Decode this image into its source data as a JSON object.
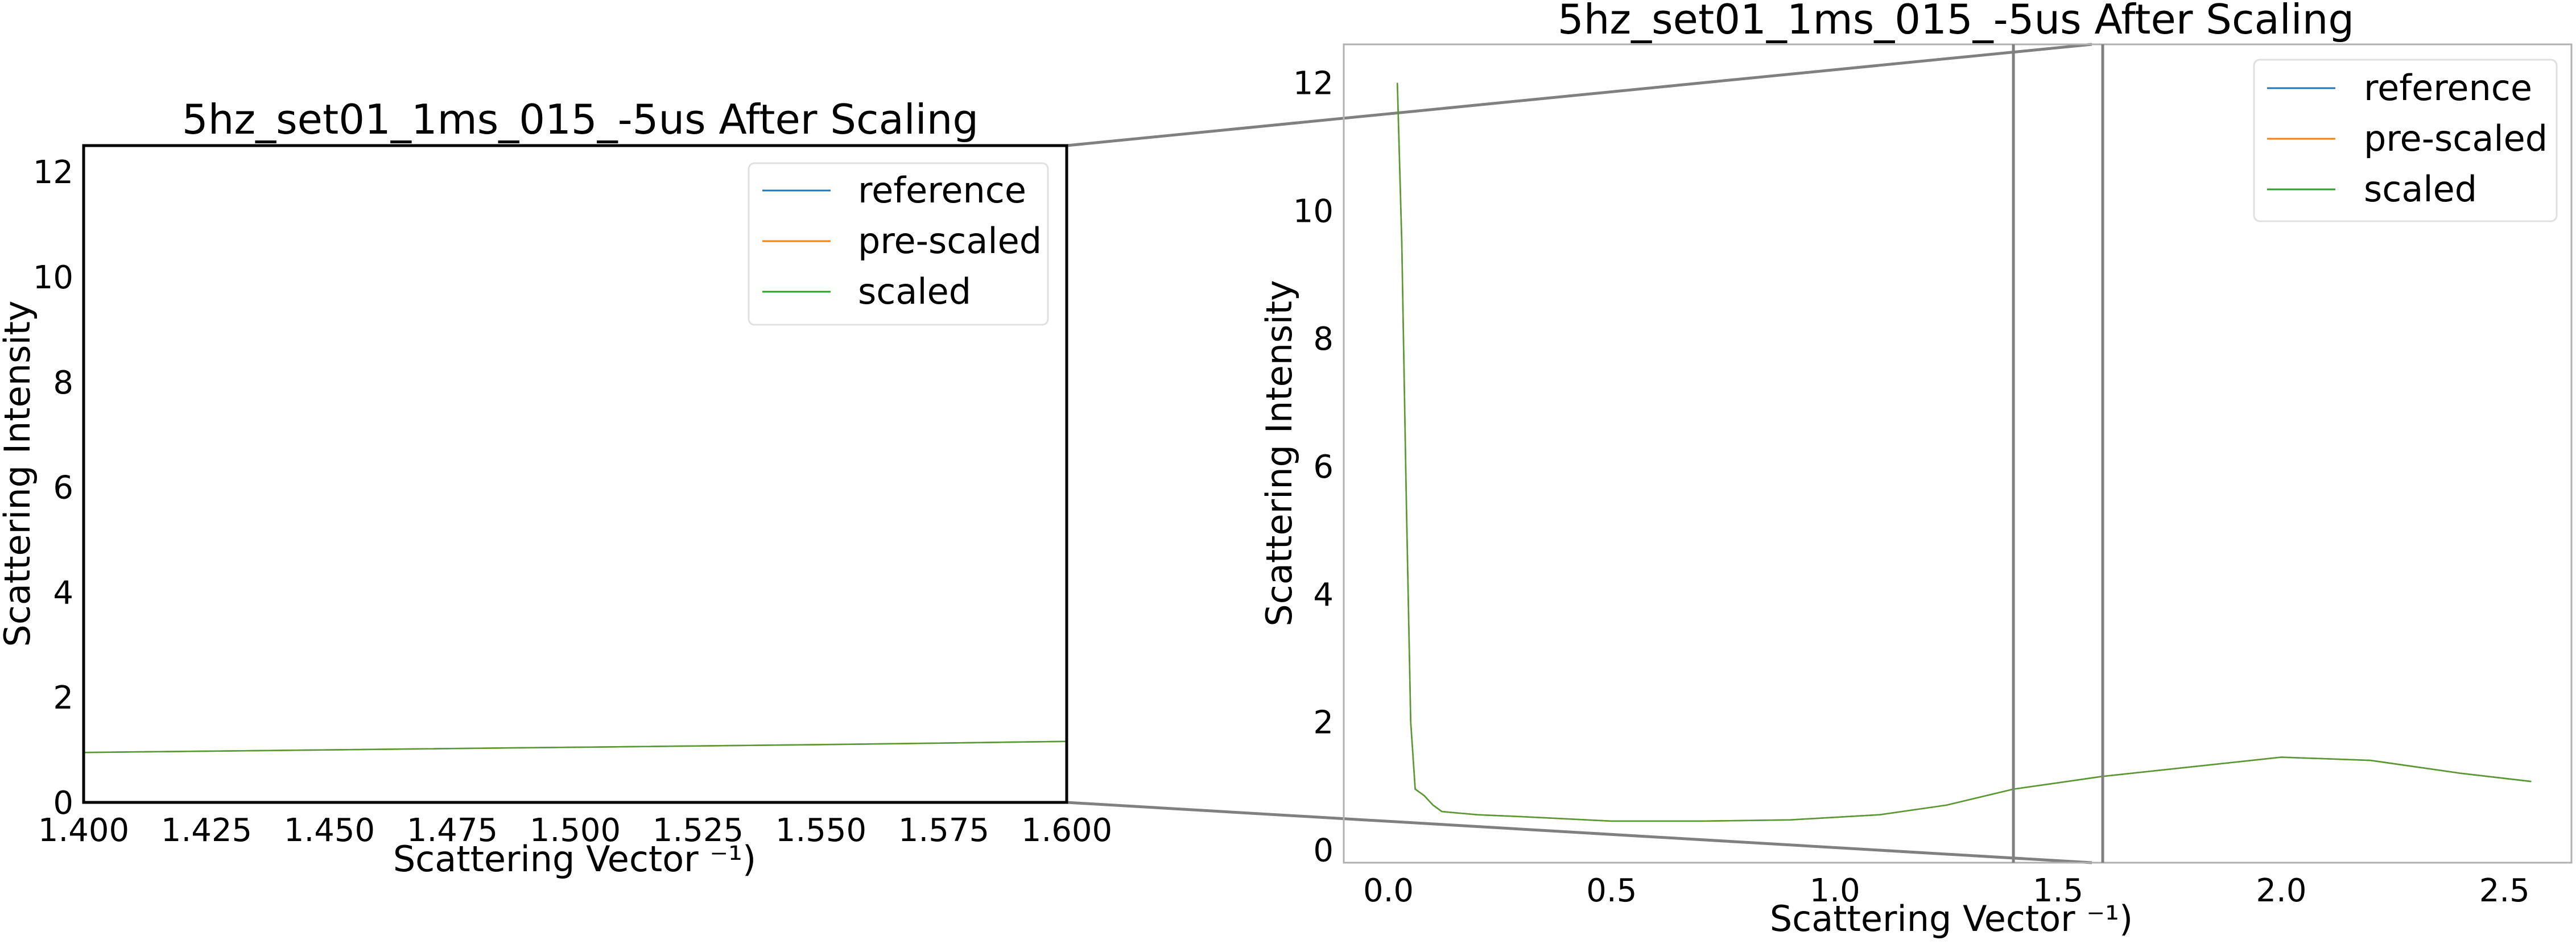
{
  "chart_data": [
    {
      "type": "line",
      "title": "5hz_set01_1ms_015_-5us After Scaling",
      "xlabel": "Scattering Vector ⁻¹)",
      "ylabel": "Scattering Intensity",
      "xlim": [
        1.4,
        1.6
      ],
      "ylim": [
        0,
        12.5
      ],
      "xticks": [
        "1.400",
        "1.425",
        "1.450",
        "1.475",
        "1.500",
        "1.525",
        "1.550",
        "1.575",
        "1.600"
      ],
      "yticks": [
        "0",
        "2",
        "4",
        "6",
        "8",
        "10",
        "12"
      ],
      "legend_position": "top-right",
      "grid": false,
      "series": [
        {
          "name": "reference",
          "color": "#1f77b4",
          "x": [
            1.4,
            1.45,
            1.5,
            1.55,
            1.6
          ],
          "y": [
            0.95,
            1.0,
            1.05,
            1.1,
            1.16
          ]
        },
        {
          "name": "pre-scaled",
          "color": "#ff7f0e",
          "x": [
            1.4,
            1.45,
            1.5,
            1.55,
            1.6
          ],
          "y": [
            0.95,
            1.0,
            1.05,
            1.1,
            1.16
          ]
        },
        {
          "name": "scaled",
          "color": "#2ca02c",
          "x": [
            1.4,
            1.45,
            1.5,
            1.55,
            1.6
          ],
          "y": [
            0.95,
            1.0,
            1.05,
            1.1,
            1.16
          ]
        }
      ]
    },
    {
      "type": "line",
      "title": "5hz_set01_1ms_015_-5us After Scaling",
      "xlabel": "Scattering Vector ⁻¹)",
      "ylabel": "Scattering Intensity",
      "xlim": [
        -0.1,
        2.65
      ],
      "ylim": [
        -0.2,
        12.6
      ],
      "xticks": [
        "0.0",
        "0.5",
        "1.0",
        "1.5",
        "2.0",
        "2.5"
      ],
      "yticks": [
        "0",
        "2",
        "4",
        "6",
        "8",
        "10",
        "12"
      ],
      "legend_position": "top-right",
      "grid": false,
      "inset_region": {
        "x": [
          1.4,
          1.6
        ],
        "y": [
          0,
          12.5
        ]
      },
      "series": [
        {
          "name": "reference",
          "color": "#1f77b4",
          "x": [
            0.02,
            0.03,
            0.04,
            0.05,
            0.06,
            0.08,
            0.1,
            0.12,
            0.2,
            0.3,
            0.5,
            0.7,
            0.9,
            1.1,
            1.25,
            1.4,
            1.5,
            1.6,
            1.8,
            2.0,
            2.2,
            2.4,
            2.56
          ],
          "y": [
            12.0,
            9.5,
            5.5,
            2.0,
            0.95,
            0.85,
            0.7,
            0.6,
            0.55,
            0.52,
            0.45,
            0.45,
            0.47,
            0.55,
            0.7,
            0.95,
            1.05,
            1.15,
            1.3,
            1.45,
            1.4,
            1.2,
            1.07
          ]
        },
        {
          "name": "pre-scaled",
          "color": "#ff7f0e",
          "x": [
            0.02,
            0.03,
            0.04,
            0.05,
            0.06,
            0.08,
            0.1,
            0.12,
            0.2,
            0.3,
            0.5,
            0.7,
            0.9,
            1.1,
            1.25,
            1.4,
            1.5,
            1.6,
            1.8,
            2.0,
            2.2,
            2.4,
            2.56
          ],
          "y": [
            12.0,
            9.5,
            5.5,
            2.0,
            0.95,
            0.85,
            0.7,
            0.6,
            0.55,
            0.52,
            0.45,
            0.45,
            0.47,
            0.55,
            0.7,
            0.95,
            1.05,
            1.15,
            1.3,
            1.45,
            1.4,
            1.2,
            1.07
          ]
        },
        {
          "name": "scaled",
          "color": "#2ca02c",
          "x": [
            0.02,
            0.03,
            0.04,
            0.05,
            0.06,
            0.08,
            0.1,
            0.12,
            0.2,
            0.3,
            0.5,
            0.7,
            0.9,
            1.1,
            1.25,
            1.4,
            1.5,
            1.6,
            1.8,
            2.0,
            2.2,
            2.4,
            2.56
          ],
          "y": [
            12.0,
            9.5,
            5.5,
            2.0,
            0.95,
            0.85,
            0.7,
            0.6,
            0.55,
            0.52,
            0.45,
            0.45,
            0.47,
            0.55,
            0.7,
            0.95,
            1.05,
            1.15,
            1.3,
            1.45,
            1.4,
            1.2,
            1.07
          ]
        }
      ]
    }
  ]
}
